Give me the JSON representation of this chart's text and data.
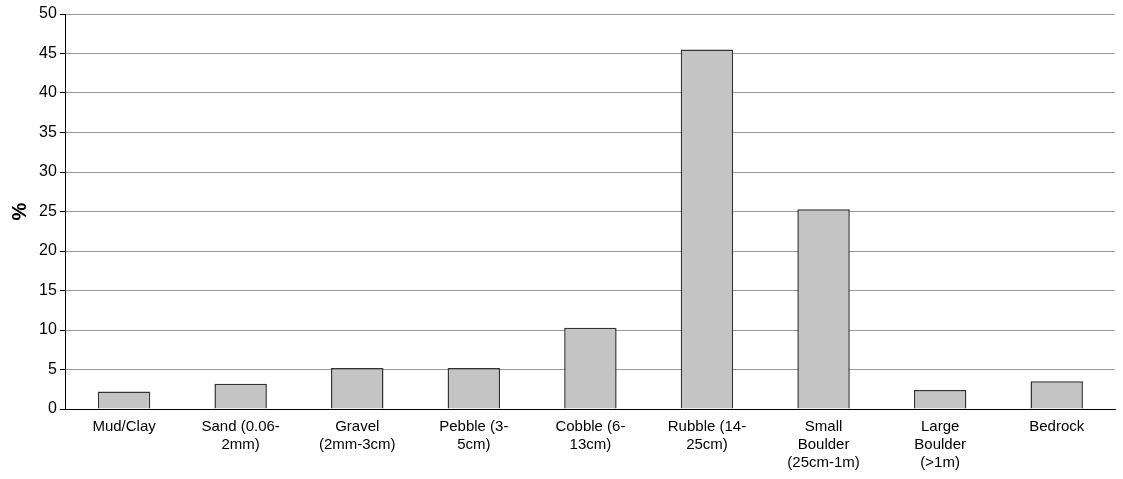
{
  "chart_data": {
    "type": "bar",
    "ylabel": "%",
    "categories": [
      "Mud/Clay",
      "Sand (0.06-2mm)",
      "Gravel (2mm-3cm)",
      "Pebble (3-5cm)",
      "Cobble (6-13cm)",
      "Rubble (14-25cm)",
      "Small Boulder (25cm-1m)",
      "Large Boulder (>1m)",
      "Bedrock"
    ],
    "values": [
      2.2,
      3.2,
      5.2,
      5.2,
      10.3,
      45.5,
      25.3,
      2.4,
      3.5
    ],
    "color": "#c4c4c4",
    "ylim": [
      0,
      50
    ],
    "yticks": [
      0,
      5,
      10,
      15,
      20,
      25,
      30,
      35,
      40,
      45,
      50
    ],
    "grid": "y",
    "legend": false
  }
}
